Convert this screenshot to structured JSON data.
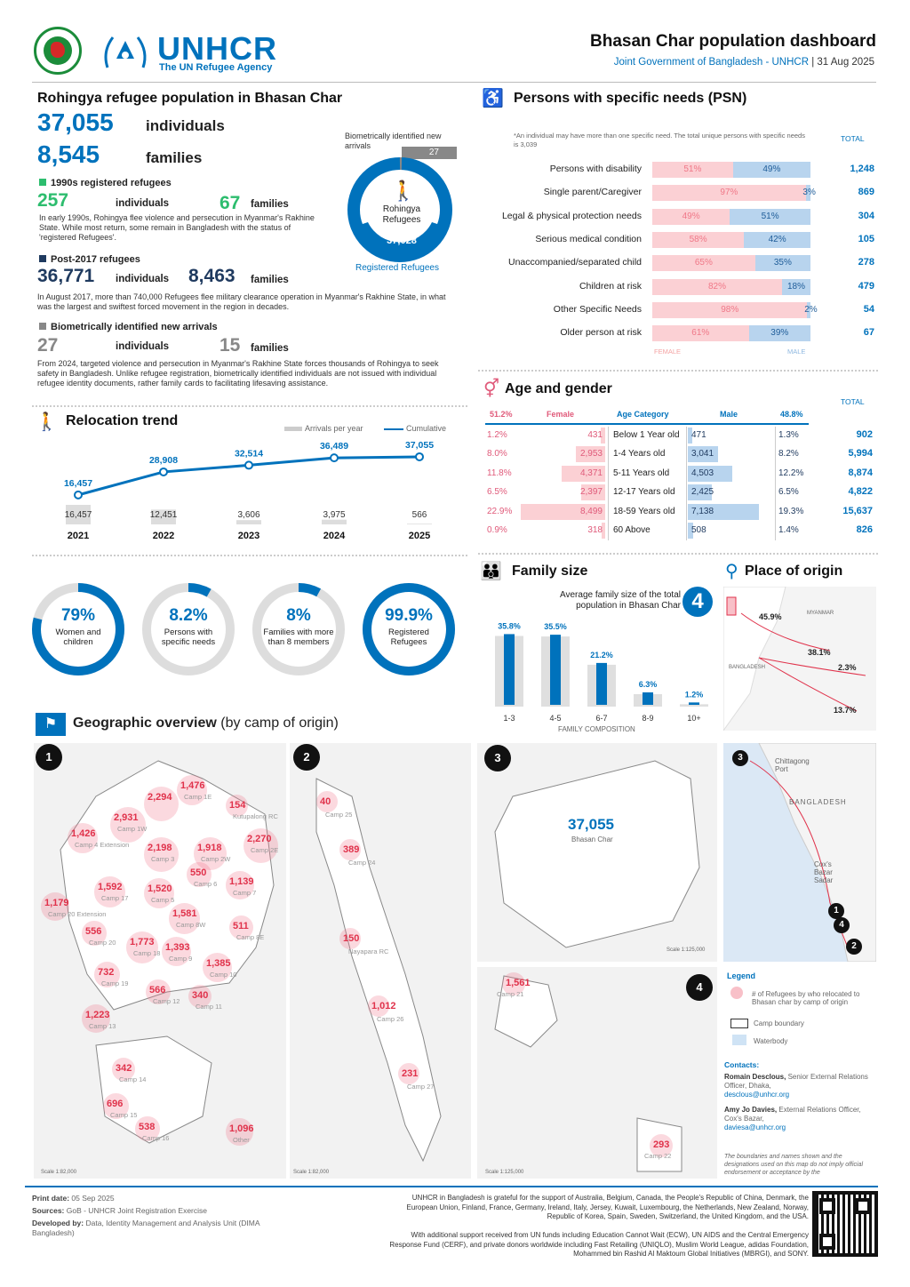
{
  "header": {
    "title": "Bhasan Char population dashboard",
    "subtitle": "Joint Government of Bangladesh - UNHCR",
    "date": "31 Aug 2025",
    "org": "UNHCR",
    "org_tag": "The UN Refugee Agency"
  },
  "population": {
    "title": "Rohingya refugee population in Bhasan Char",
    "individuals": "37,055",
    "individuals_label": "individuals",
    "families": "8,545",
    "families_label": "families",
    "g1990": {
      "title": "1990s registered refugees",
      "ind": "257",
      "ind_label": "individuals",
      "fam": "67",
      "fam_label": "families",
      "text": "In early 1990s, Rohingya flee violence and persecution in Myanmar's Rakhine State. While most return, some remain in Bangladesh with the status of 'registered Refugees'."
    },
    "g2017": {
      "title": "Post-2017 refugees",
      "ind": "36,771",
      "ind_label": "individuals",
      "fam": "8,463",
      "fam_label": "families",
      "text": "In August 2017, more than 740,000 Refugees flee military clearance operation in Myanmar's Rakhine State, in what was the largest and swiftest forced movement in the region in decades."
    },
    "gbio": {
      "title": "Biometrically identified new arrivals",
      "ind": "27",
      "ind_label": "individuals",
      "fam": "15",
      "fam_label": "families",
      "text": "From 2024, targeted violence and persecution in Myanmar's Rakhine State forces thousands of Rohingya to seek safety in Bangladesh. Unlike refugee registration, biometrically identified individuals are not issued with individual refugee identity documents, rather family cards to facilitating lifesaving assistance."
    },
    "donut": {
      "top_label": "Biometrically identified new arrivals",
      "top_value": "27",
      "center_label": "Rohingya Refugees",
      "center_value": "37,028",
      "bottom_label": "Registered Refugees"
    }
  },
  "psn": {
    "title": "Persons with specific needs (PSN)",
    "note": "*An individual may have more than one specific need. The total unique persons with specific needs is 3,039",
    "total_label": "TOTAL",
    "female_label": "FEMALE",
    "male_label": "MALE",
    "rows": [
      {
        "label": "Persons with disability",
        "f": 51,
        "m": 49,
        "total": "1,248"
      },
      {
        "label": "Single parent/Caregiver",
        "f": 97,
        "m": 3,
        "total": "869"
      },
      {
        "label": "Legal & physical protection needs",
        "f": 49,
        "m": 51,
        "total": "304"
      },
      {
        "label": "Serious medical condition",
        "f": 58,
        "m": 42,
        "total": "105"
      },
      {
        "label": "Unaccompanied/separated child",
        "f": 65,
        "m": 35,
        "total": "278"
      },
      {
        "label": "Children at risk",
        "f": 82,
        "m": 18,
        "total": "479"
      },
      {
        "label": "Other Specific Needs",
        "f": 98,
        "m": 2,
        "total": "54"
      },
      {
        "label": "Older person at risk",
        "f": 61,
        "m": 39,
        "total": "67"
      }
    ]
  },
  "age": {
    "title": "Age and gender",
    "female_pct": "51.2%",
    "female_label": "Female",
    "cat_label": "Age Category",
    "male_label": "Male",
    "male_pct": "48.8%",
    "total_label": "TOTAL",
    "rows": [
      {
        "fp": "1.2%",
        "f": "431",
        "fv": 431,
        "cat": "Below 1 Year old",
        "m": "471",
        "mv": 471,
        "mp": "1.3%",
        "total": "902"
      },
      {
        "fp": "8.0%",
        "f": "2,953",
        "fv": 2953,
        "cat": "1-4 Years old",
        "m": "3,041",
        "mv": 3041,
        "mp": "8.2%",
        "total": "5,994"
      },
      {
        "fp": "11.8%",
        "f": "4,371",
        "fv": 4371,
        "cat": "5-11 Years old",
        "m": "4,503",
        "mv": 4503,
        "mp": "12.2%",
        "total": "8,874"
      },
      {
        "fp": "6.5%",
        "f": "2,397",
        "fv": 2397,
        "cat": "12-17 Years old",
        "m": "2,425",
        "mv": 2425,
        "mp": "6.5%",
        "total": "4,822"
      },
      {
        "fp": "22.9%",
        "f": "8,499",
        "fv": 8499,
        "cat": "18-59 Years old",
        "m": "7,138",
        "mv": 7138,
        "mp": "19.3%",
        "total": "15,637"
      },
      {
        "fp": "0.9%",
        "f": "318",
        "fv": 318,
        "cat": "60 Above",
        "m": "508",
        "mv": 508,
        "mp": "1.4%",
        "total": "826"
      }
    ]
  },
  "relocation": {
    "title": "Relocation trend",
    "legend_arrivals": "Arrivals per year",
    "legend_cumulative": "Cumulative",
    "chart_data": {
      "type": "line",
      "categories": [
        "2021",
        "2022",
        "2023",
        "2024",
        "2025"
      ],
      "series": [
        {
          "name": "Cumulative",
          "values": [
            16457,
            28908,
            32514,
            36489,
            37055
          ]
        },
        {
          "name": "Arrivals per year",
          "values": [
            16457,
            12451,
            3606,
            3975,
            566
          ]
        }
      ]
    },
    "cum_labels": [
      "16,457",
      "28,908",
      "32,514",
      "36,489",
      "37,055"
    ],
    "arr_labels": [
      "16,457",
      "12,451",
      "3,606",
      "3,975",
      "566"
    ]
  },
  "kpis": [
    {
      "value": "79%",
      "label": "Women and children",
      "pct": 0.79
    },
    {
      "value": "8.2%",
      "label": "Persons with specific needs",
      "pct": 0.082
    },
    {
      "value": "8%",
      "label": "Families with more than 8 members",
      "pct": 0.08
    },
    {
      "value": "99.9%",
      "label": "Registered Refugees",
      "pct": 0.999
    }
  ],
  "family": {
    "title": "Family size",
    "avg_text": "Average family size of the total population in Bhasan Char",
    "avg": "4",
    "axis_label": "FAMILY COMPOSITION",
    "chart_data": {
      "type": "bar",
      "categories": [
        "1-3",
        "4-5",
        "6-7",
        "8-9",
        "10+"
      ],
      "values": [
        35.8,
        35.5,
        21.2,
        6.3,
        1.2
      ]
    },
    "labels": [
      "35.8%",
      "35.5%",
      "21.2%",
      "6.3%",
      "1.2%"
    ]
  },
  "origin": {
    "title": "Place of origin",
    "pcts": [
      "45.9%",
      "38.1%",
      "2.3%",
      "13.7%"
    ],
    "myanmar": "MYANMAR",
    "bangladesh": "BANGLADESH"
  },
  "geo": {
    "title": "Geographic overview",
    "title_suffix": "(by camp of origin)",
    "map1": {
      "pins": [
        [
          "1,476",
          "Camp 1E"
        ],
        [
          "2,294",
          ""
        ],
        [
          "154",
          "Kutupalong RC"
        ],
        [
          "2,931",
          "Camp 1W"
        ],
        [
          "1,426",
          "Camp 4 Extension"
        ],
        [
          "2,198",
          "Camp 3"
        ],
        [
          "1,918",
          "Camp 2W"
        ],
        [
          "2,270",
          "Camp 2E"
        ],
        [
          "550",
          "Camp 6"
        ],
        [
          "1,520",
          "Camp 5"
        ],
        [
          "1,592",
          "Camp 17"
        ],
        [
          "1,139",
          "Camp 7"
        ],
        [
          "1,179",
          "Camp 20 Extension"
        ],
        [
          "1,581",
          "Camp 8W"
        ],
        [
          "511",
          "Camp 8E"
        ],
        [
          "556",
          "Camp 20"
        ],
        [
          "1,773",
          "Camp 18"
        ],
        [
          "1,393",
          "Camp 9"
        ],
        [
          "1,385",
          "Camp 10"
        ],
        [
          "732",
          "Camp 19"
        ],
        [
          "566",
          "Camp 12"
        ],
        [
          "340",
          "Camp 11"
        ],
        [
          "1,223",
          "Camp 13"
        ],
        [
          "342",
          "Camp 14"
        ],
        [
          "696",
          "Camp 15"
        ],
        [
          "538",
          "Camp 16"
        ],
        [
          "1,096",
          "Other"
        ]
      ],
      "camp4": "Camp 4",
      "scale": "Scale 1:82,000"
    },
    "map2": {
      "pins": [
        [
          "40",
          "Camp 25"
        ],
        [
          "389",
          "Camp 24"
        ],
        [
          "150",
          "Nayapara RC"
        ],
        [
          "1,012",
          "Camp 26"
        ],
        [
          "231",
          "Camp 27"
        ]
      ],
      "scale": "Scale 1:82,000"
    },
    "map3": {
      "value": "37,055",
      "label": "Bhasan Char",
      "scale": "Scale 1:125,000"
    },
    "map4": {
      "pins": [
        [
          "1,561",
          "Camp 21"
        ],
        [
          "293",
          "Camp 22"
        ]
      ]
    },
    "inset": {
      "chittagong": "Chittagong Port",
      "bangladesh": "BANGLADESH",
      "coxs": "Cox's Bazar Sadar"
    },
    "legend": {
      "title": "Legend",
      "item1": "# of Refugees by who relocated to Bhasan char by camp of origin",
      "item2": "Camp boundary",
      "item3": "Waterbody"
    },
    "contacts": {
      "title": "Contacts:",
      "c1_name": "Romain Desclous,",
      "c1_role": "Senior External Relations Officer, Dhaka,",
      "c1_email": "desclous@unhcr.org",
      "c2_name": "Amy Jo Davies,",
      "c2_role": "External Relations Officer, Cox's Bazar,",
      "c2_email": "daviesa@unhcr.org"
    },
    "disclaimer": "The boundaries and names shown and the designations used on this map do not imply official endorsement or acceptance by the"
  },
  "footer": {
    "print_label": "Print date:",
    "print_date": "05 Sep 2025",
    "sources_label": "Sources:",
    "sources": "GoB - UNHCR Joint Registration Exercise",
    "dev_label": "Developed by:",
    "dev": "Data, Identity Management and Analysis Unit (DIMA Bangladesh)",
    "thanks": "UNHCR in Bangladesh is grateful for the support of Australia, Belgium, Canada, the People's Republic of China, Denmark, the European Union, Finland, France, Germany, Ireland, Italy, Jersey, Kuwait, Luxembourg, the Netherlands, New Zealand, Norway, Republic of Korea, Spain, Sweden, Switzerland, the United Kingdom, and the USA.",
    "thanks2": "With additional support received from UN funds including Education Cannot Wait (ECW), UN AIDS and the Central Emergency Response Fund (CERF), and private donors worldwide including Fast Retailing (UNIQLO), Muslim World League, adidas Foundation, Mohammed bin Rashid Al Maktoum Global Initiatives (MBRGI), and SONY."
  }
}
